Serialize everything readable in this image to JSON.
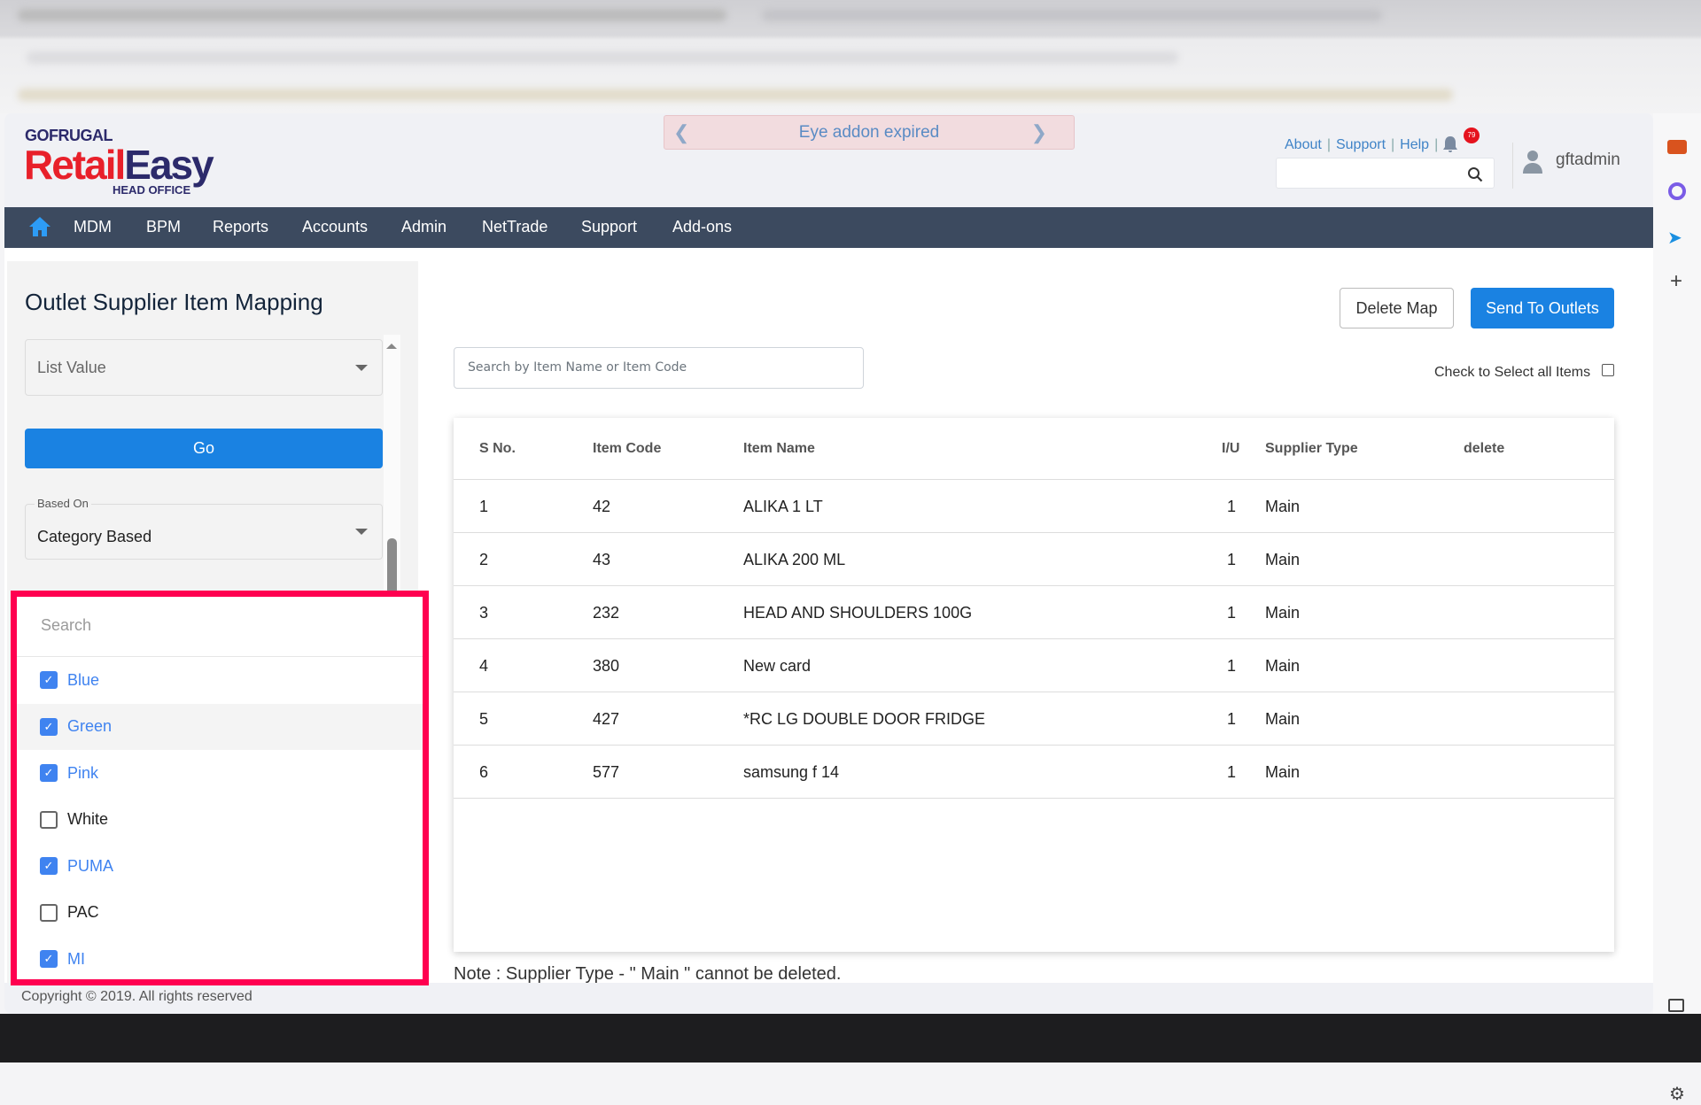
{
  "header": {
    "brand_top": "GOFRUGAL",
    "brand_retail": "Retail",
    "brand_easy": "Easy",
    "brand_sub": "HEAD OFFICE",
    "banner": "Eye addon expired",
    "links": [
      "About",
      "Support",
      "Help"
    ],
    "notification_count": "79",
    "username": "gftadmin",
    "search_value": ""
  },
  "nav": {
    "items": [
      "MDM",
      "BPM",
      "Reports",
      "Accounts",
      "Admin",
      "NetTrade",
      "Support",
      "Add-ons"
    ]
  },
  "left": {
    "title": "Outlet Supplier Item Mapping",
    "list_value": "List Value",
    "go_label": "Go",
    "based_on_label": "Based On",
    "based_on_value": "Category Based",
    "dropdown": {
      "search_placeholder": "Search",
      "options": [
        {
          "label": "Blue",
          "checked": true
        },
        {
          "label": "Green",
          "checked": true
        },
        {
          "label": "Pink",
          "checked": true
        },
        {
          "label": "White",
          "checked": false
        },
        {
          "label": "PUMA",
          "checked": true
        },
        {
          "label": "PAC",
          "checked": false
        },
        {
          "label": "MI",
          "checked": true
        }
      ]
    }
  },
  "main": {
    "delete_map": "Delete Map",
    "send_to_outlets": "Send To Outlets",
    "search_placeholder": "Search by Item Name or Item Code",
    "check_all_label": "Check to Select all Items",
    "table": {
      "headers": [
        "S No.",
        "Item Code",
        "Item Name",
        "I/U",
        "Supplier Type",
        "delete"
      ],
      "rows": [
        [
          "1",
          "42",
          "ALIKA 1 LT",
          "1",
          "Main"
        ],
        [
          "2",
          "43",
          "ALIKA 200 ML",
          "1",
          "Main"
        ],
        [
          "3",
          "232",
          "HEAD AND SHOULDERS 100G",
          "1",
          "Main"
        ],
        [
          "4",
          "380",
          "New card",
          "1",
          "Main"
        ],
        [
          "5",
          "427",
          "*RC LG DOUBLE DOOR FRIDGE",
          "1",
          "Main"
        ],
        [
          "6",
          "577",
          "samsung f 14",
          "1",
          "Main"
        ]
      ]
    },
    "note": "Note : Supplier Type - \" Main \" cannot be deleted."
  },
  "footer": {
    "copyright": "Copyright © 2019. All rights reserved"
  },
  "colors": {
    "primary": "#1a82e2",
    "nav": "#3c4a5f",
    "highlight": "#ff0050",
    "checked": "#3f83f0"
  }
}
